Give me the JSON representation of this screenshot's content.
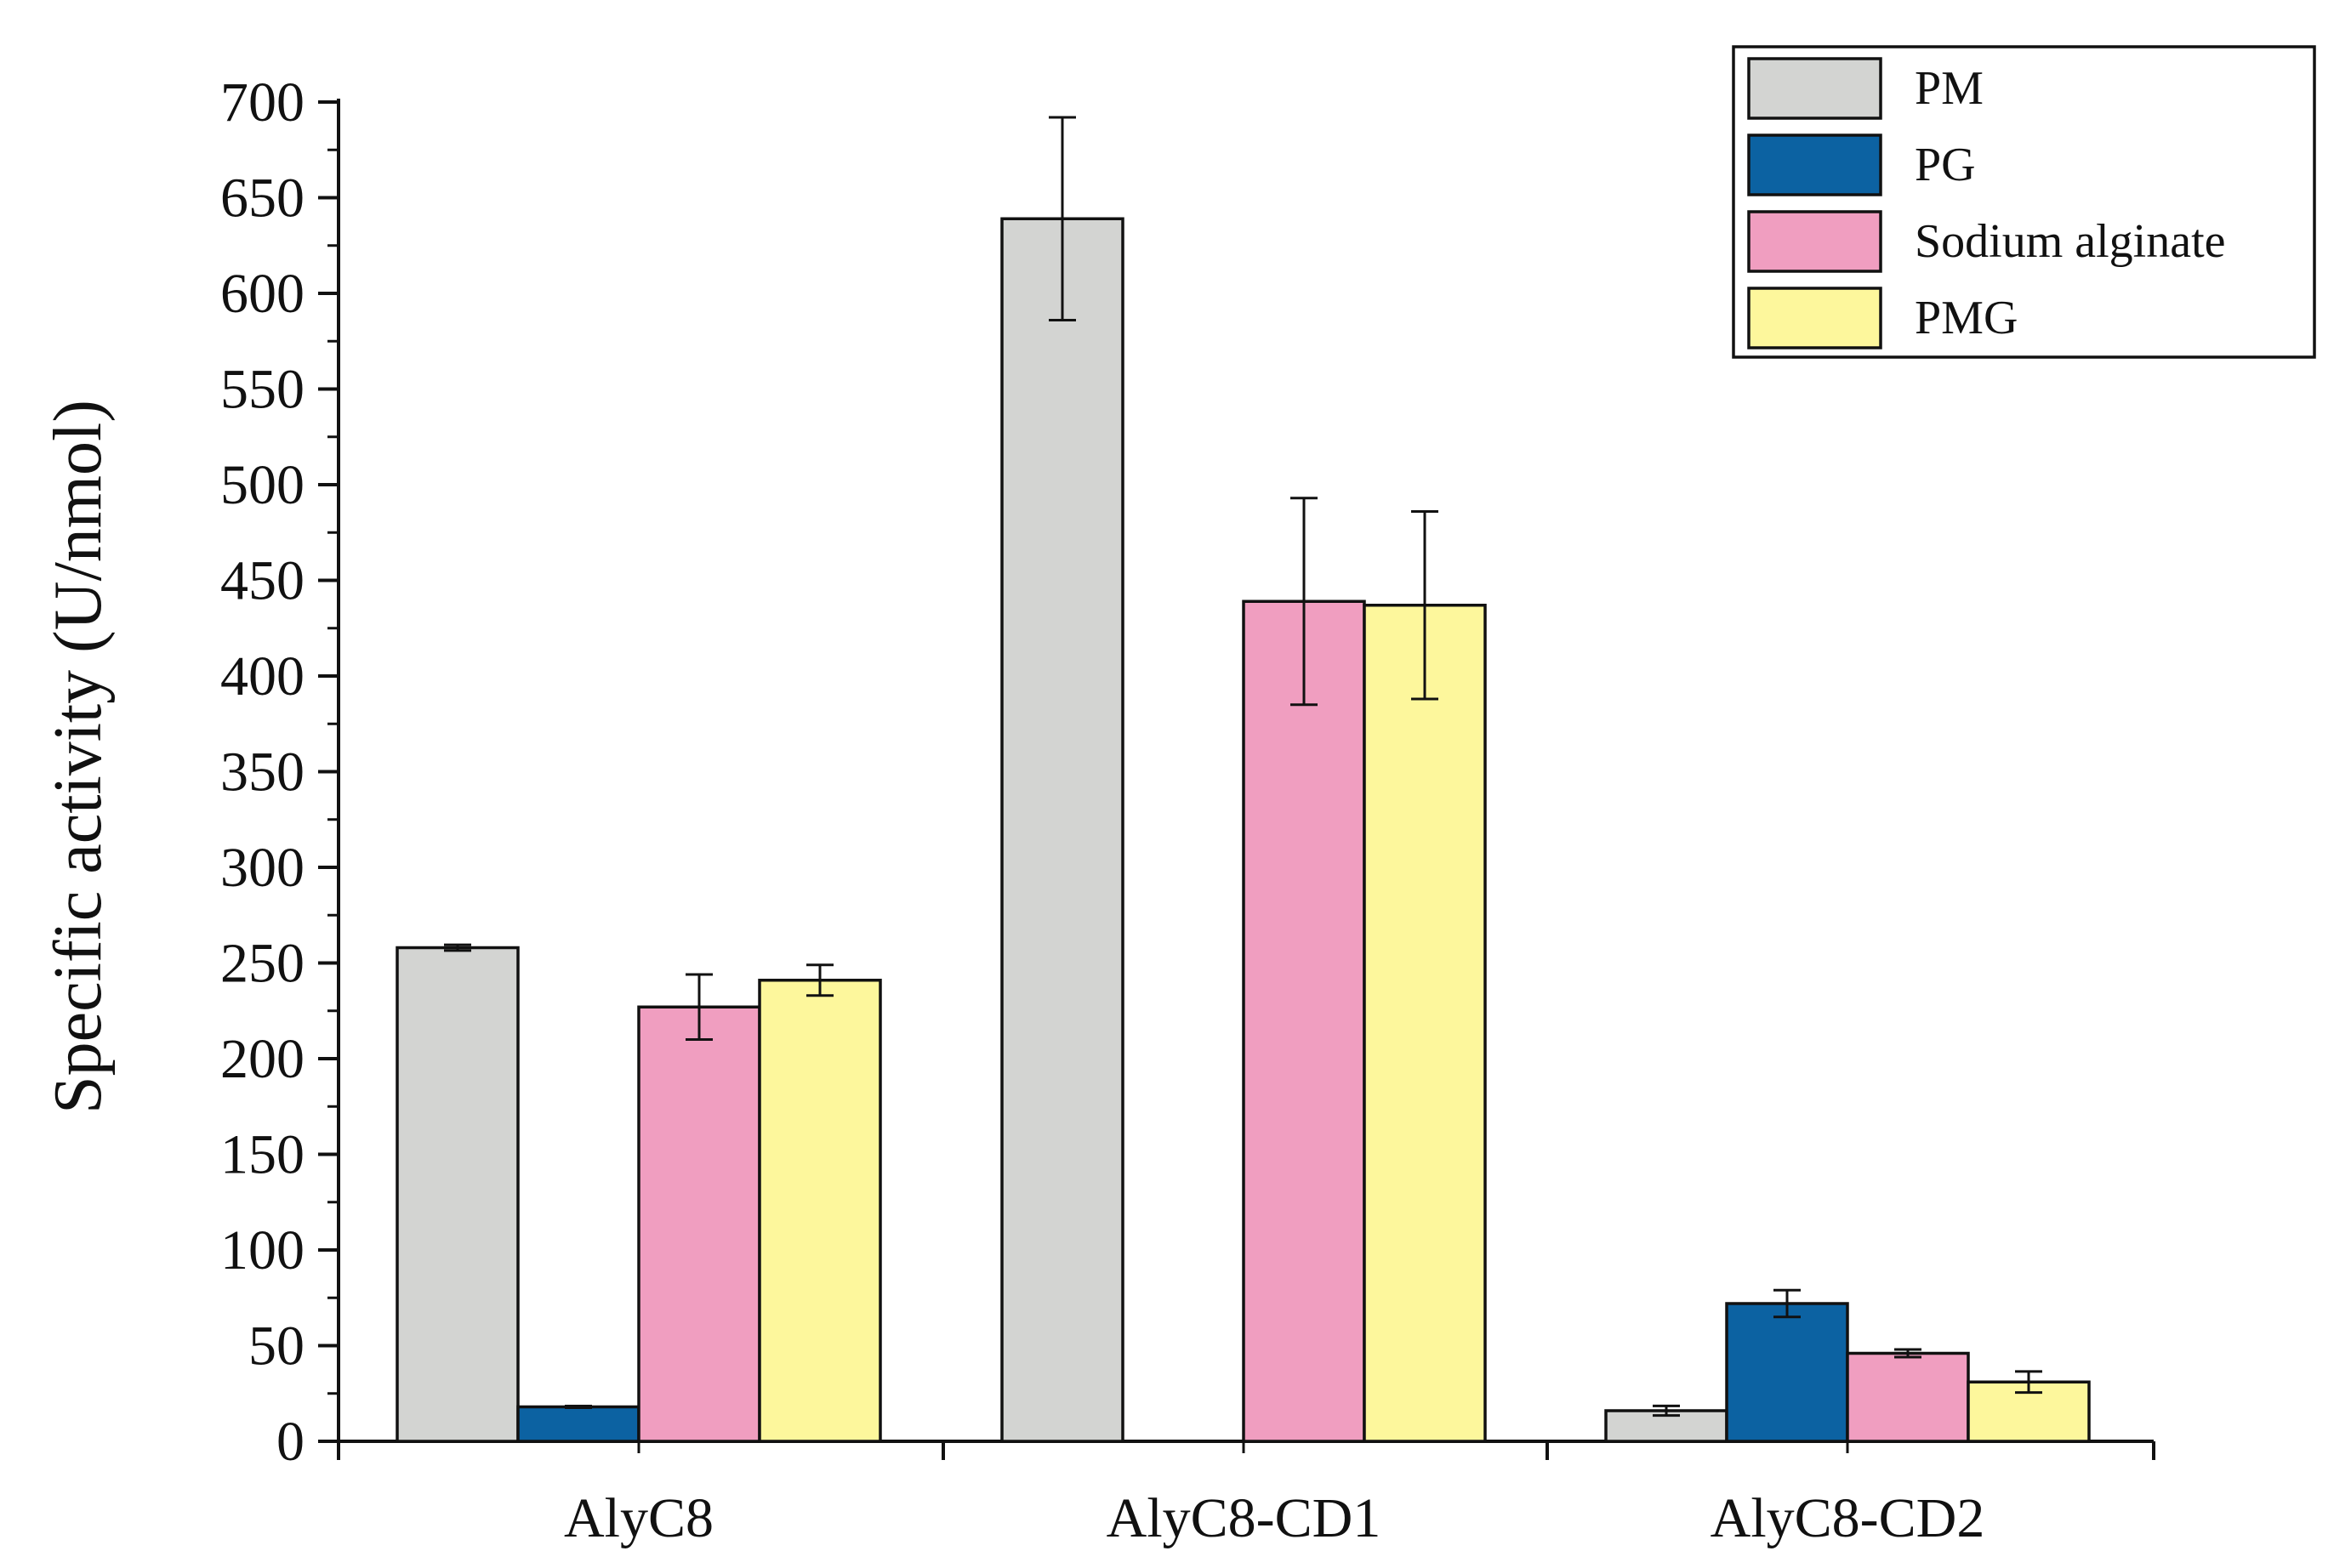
{
  "chart_data": {
    "type": "bar",
    "title": "",
    "xlabel": "",
    "ylabel": "Specific activity (U/nmol)",
    "ylim": [
      0,
      700
    ],
    "ytick_step": 50,
    "ytick_labels": [
      "0",
      "50",
      "100",
      "150",
      "200",
      "250",
      "300",
      "350",
      "400",
      "450",
      "500",
      "550",
      "600",
      "650",
      "700"
    ],
    "categories": [
      "AlyC8",
      "AlyC8-CD1",
      "AlyC8-CD2"
    ],
    "legend_position": "top-right",
    "grid": false,
    "series": [
      {
        "name": "PM",
        "color": "#d3d4d2",
        "values": [
          258,
          639,
          16
        ],
        "errors": [
          1.5,
          53,
          2.5
        ]
      },
      {
        "name": "PG",
        "color": "#0c62a2",
        "values": [
          18,
          0,
          72
        ],
        "errors": [
          0,
          0,
          7
        ]
      },
      {
        "name": "Sodium alginate",
        "color": "#f09ec0",
        "values": [
          227,
          439,
          46
        ],
        "errors": [
          17,
          54,
          2
        ]
      },
      {
        "name": "PMG",
        "color": "#fdf79c",
        "values": [
          241,
          437,
          31
        ],
        "errors": [
          8,
          49,
          5.5
        ]
      }
    ]
  }
}
